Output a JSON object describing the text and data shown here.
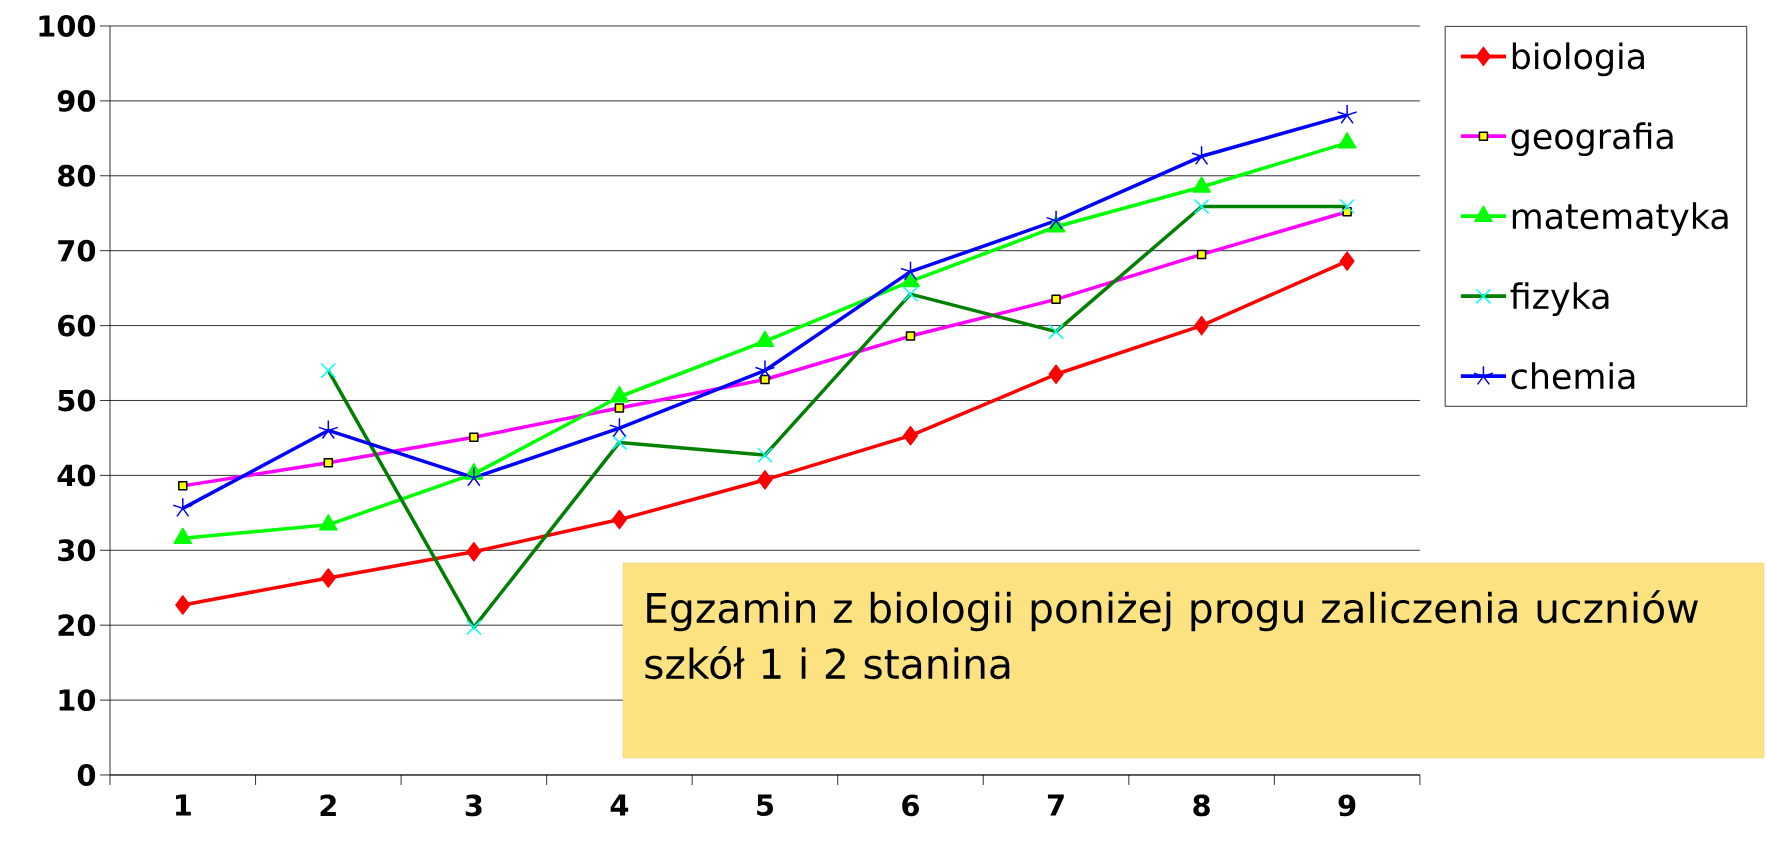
{
  "chart_data": {
    "type": "line",
    "categories": [
      "1",
      "2",
      "3",
      "4",
      "5",
      "6",
      "7",
      "8",
      "9"
    ],
    "series": [
      {
        "name": "biologia",
        "color": "#ff0000",
        "marker": "diamond",
        "values": [
          22.7,
          26.3,
          29.8,
          34.1,
          39.4,
          45.3,
          53.5,
          60,
          68.6
        ]
      },
      {
        "name": "geografia",
        "color": "#ff00ff",
        "marker": "square",
        "values": [
          38.6,
          41.7,
          45.1,
          49,
          52.8,
          58.6,
          63.5,
          69.5,
          75.2
        ]
      },
      {
        "name": "matematyka",
        "color": "#00ff00",
        "marker": "triangle",
        "values": [
          31.6,
          33.4,
          40.2,
          50.5,
          57.9,
          65.9,
          73.2,
          78.5,
          84.4
        ]
      },
      {
        "name": "fizyka",
        "color": "#008000",
        "marker": "cross",
        "values": [
          null,
          54,
          19.7,
          44.4,
          42.7,
          64.2,
          59.2,
          75.9,
          75.9
        ]
      },
      {
        "name": "chemia",
        "color": "#0000ff",
        "marker": "cross",
        "values": [
          35.6,
          46,
          39.7,
          46.3,
          54,
          67.2,
          74,
          82.6,
          88.1
        ]
      }
    ],
    "ylim": [
      0,
      100
    ],
    "yticks": [
      0,
      10,
      20,
      30,
      40,
      50,
      60,
      70,
      80,
      90,
      100
    ],
    "grid": "y",
    "legend": "right",
    "line_style": "solid",
    "annotations": [
      "Egzamin z biologii poniżej progu zaliczenia uczniów szkół 1 i 2 stanina"
    ]
  }
}
